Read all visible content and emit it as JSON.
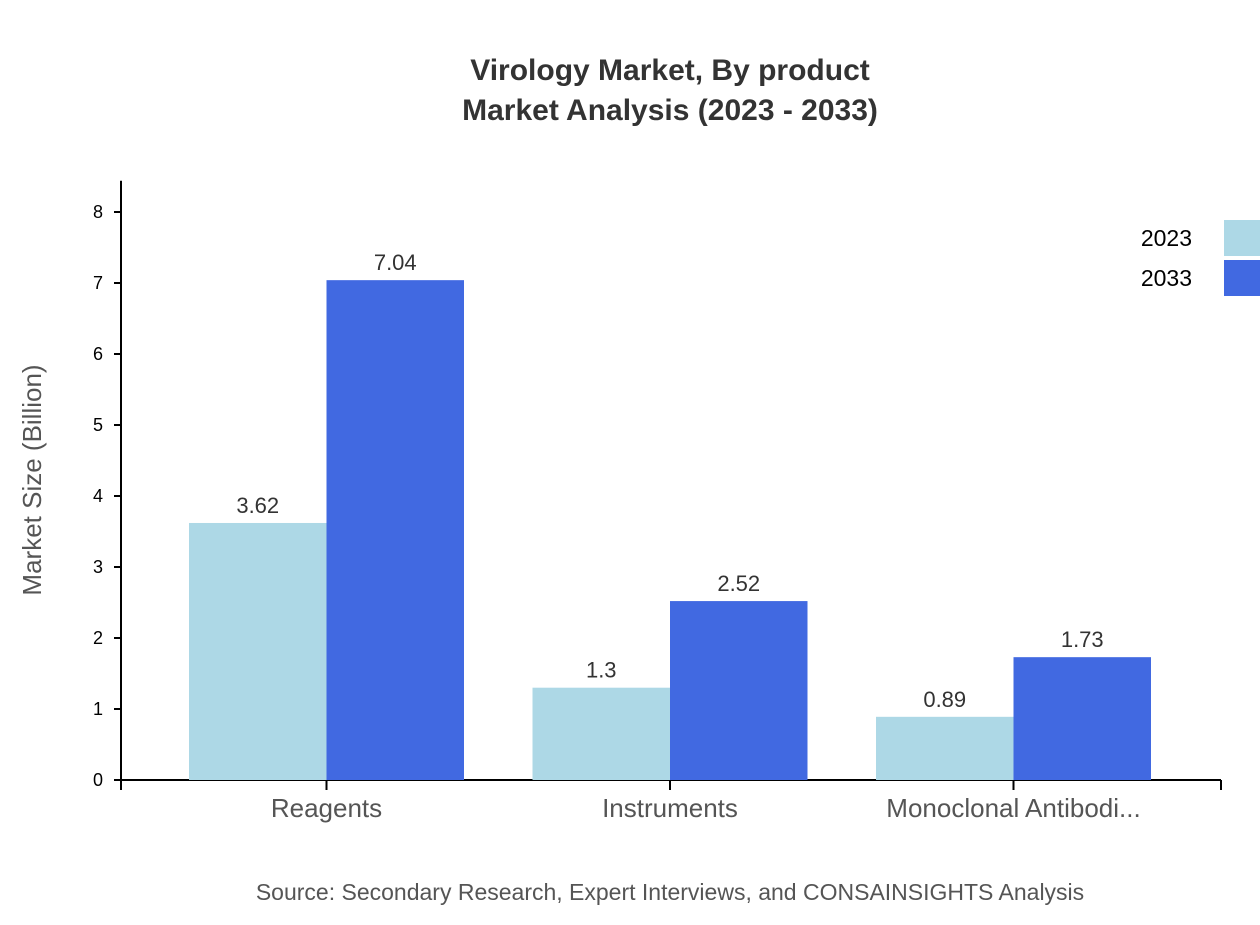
{
  "chart_data": {
    "type": "bar",
    "title": "Virology Market, By product",
    "subtitle": "Market Analysis (2023 - 2033)",
    "ylabel": "Market Size (Billion)",
    "xlabel": "",
    "ylim": [
      0,
      8.44
    ],
    "yticks": [
      0,
      1,
      2,
      3,
      4,
      5,
      6,
      7,
      8
    ],
    "categories": [
      "Reagents",
      "Instruments",
      "Monoclonal Antibodi..."
    ],
    "series": [
      {
        "name": "2023",
        "color": "#add8e6",
        "values": [
          3.62,
          1.3,
          0.89
        ]
      },
      {
        "name": "2033",
        "color": "#4169e1",
        "values": [
          7.04,
          2.52,
          1.73
        ]
      }
    ],
    "legend": "top-right",
    "grid": false,
    "source": "Source: Secondary Research, Expert Interviews, and CONSAINSIGHTS Analysis"
  }
}
